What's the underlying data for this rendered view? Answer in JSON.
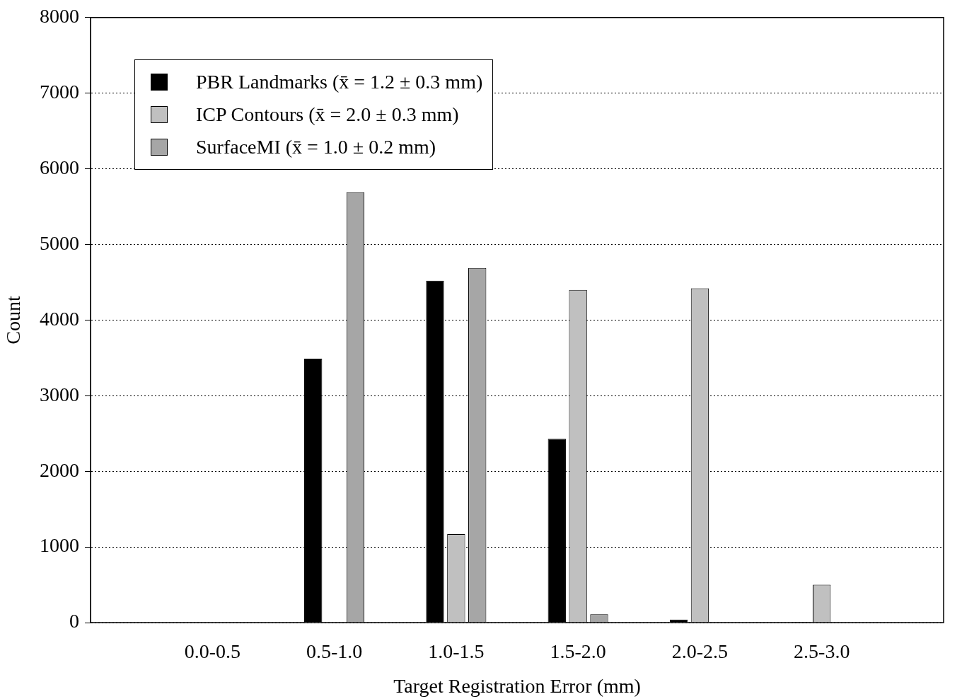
{
  "chart_data": {
    "type": "bar",
    "xlabel": "Target Registration Error (mm)",
    "ylabel": "Count",
    "categories": [
      null,
      "0.0-0.5",
      "0.5-1.0",
      "1.0-1.5",
      "1.5-2.0",
      "2.0-2.5",
      "2.5-3.0",
      null
    ],
    "series": [
      {
        "name": "PBR Landmarks (x̄ = 1.2 ±  0.3   mm)",
        "color": "#000000",
        "values": [
          null,
          0,
          3490,
          4520,
          2430,
          40,
          10,
          null
        ]
      },
      {
        "name": "ICP Contours (x̄ = 2.0 ±  0.3   mm)",
        "color": "#c0c0c0",
        "values": [
          null,
          0,
          0,
          1170,
          4400,
          4420,
          500,
          null
        ]
      },
      {
        "name": "SurfaceMI (x̄ = 1.0 ±  0.2   mm)",
        "color": "#a6a6a6",
        "values": [
          null,
          0,
          5690,
          4690,
          110,
          0,
          0,
          null
        ]
      }
    ],
    "ylim": [
      0,
      8000
    ],
    "yticks": [
      0,
      1000,
      2000,
      3000,
      4000,
      5000,
      6000,
      7000,
      8000
    ],
    "grid": "y",
    "legend": "top left"
  }
}
